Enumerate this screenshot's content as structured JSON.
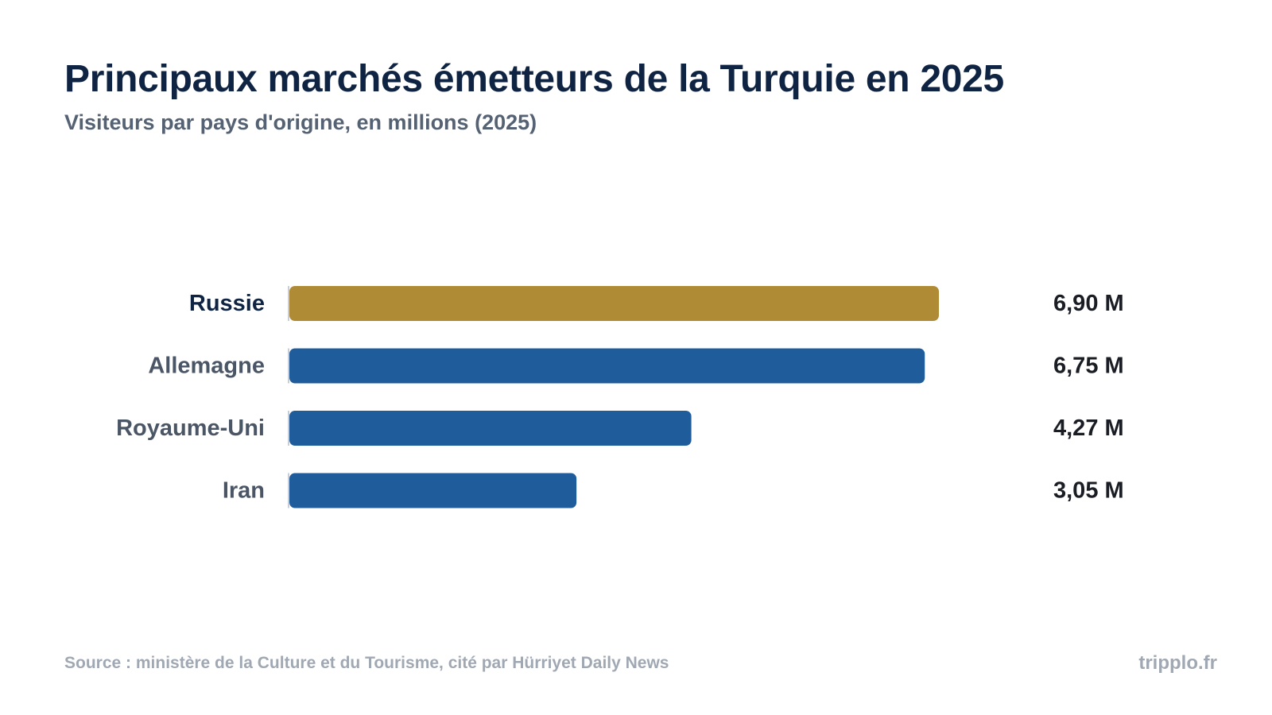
{
  "header": {
    "title": "Principaux marchés émetteurs de la Turquie en 2025",
    "subtitle": "Visiteurs par pays d'origine, en millions (2025)"
  },
  "chart_data": {
    "type": "bar",
    "orientation": "horizontal",
    "categories": [
      "Russie",
      "Allemagne",
      "Royaume-Uni",
      "Iran"
    ],
    "values": [
      6.9,
      6.75,
      4.27,
      3.05
    ],
    "value_labels": [
      "6,90 M",
      "6,75 M",
      "4,27 M",
      "3,05 M"
    ],
    "unit": "M",
    "highlight_index": 0,
    "colors": {
      "highlight": "#b08b35",
      "bar": "#1f5c9c",
      "highlight_label": "#0f2342",
      "label": "#4a5566",
      "value": "#1a1d24"
    },
    "xlim": [
      0,
      6.9
    ],
    "grid": false,
    "legend": "none"
  },
  "footer": {
    "source": "Source : ministère de la Culture et du Tourisme, cité par Hürriyet Daily News",
    "brand": "tripplo.fr"
  }
}
